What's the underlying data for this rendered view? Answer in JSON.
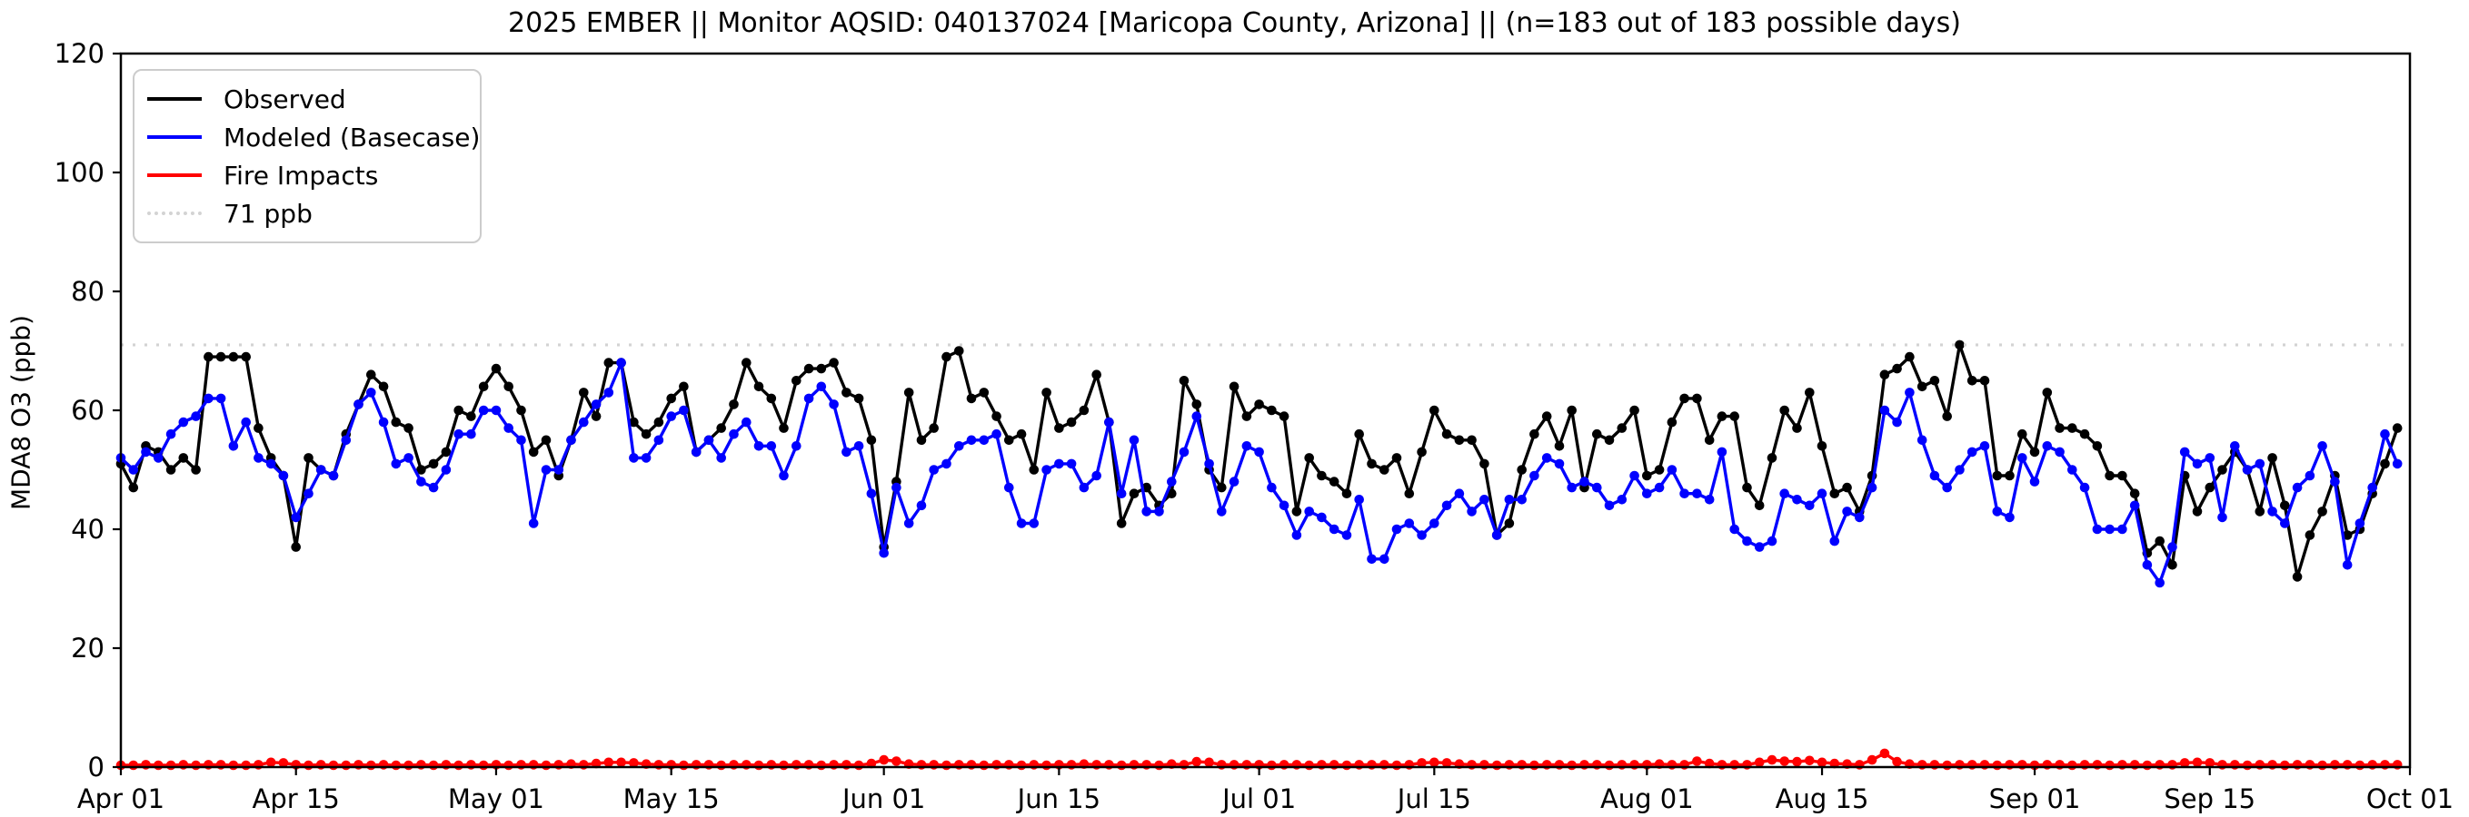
{
  "title": "2025 EMBER || Monitor AQSID: 040137024 [Maricopa County, Arizona] || (n=183 out of 183 possible days)",
  "legend": {
    "items": [
      {
        "label": "Observed",
        "color": "#000000",
        "style": "solid"
      },
      {
        "label": "Modeled (Basecase)",
        "color": "#0000ff",
        "style": "solid"
      },
      {
        "label": "Fire Impacts",
        "color": "#ff0000",
        "style": "solid"
      },
      {
        "label": "71 ppb",
        "color": "#d3d3d3",
        "style": "dotted"
      }
    ]
  },
  "colors": {
    "observed": "#000000",
    "modeled": "#0000ff",
    "fire": "#ff0000",
    "threshold": "#d3d3d3",
    "axes": "#000000",
    "background": "#ffffff"
  },
  "chart_data": {
    "type": "line",
    "title": "2025 EMBER || Monitor AQSID: 040137024 [Maricopa County, Arizona] || (n=183 out of 183 possible days)",
    "xlabel": "",
    "ylabel": "MDA8 O3 (ppb)",
    "ylim": [
      0,
      120
    ],
    "yticks": [
      0,
      20,
      40,
      60,
      80,
      100,
      120
    ],
    "x_range_days": 183,
    "start_date": "Apr 01",
    "end_date": "Sep 30",
    "grid": false,
    "legend_position": "upper left",
    "threshold": {
      "label": "71 ppb",
      "value": 71
    },
    "xticks": [
      {
        "label": "Apr 01",
        "day": 0
      },
      {
        "label": "Apr 15",
        "day": 14
      },
      {
        "label": "May 01",
        "day": 30
      },
      {
        "label": "May 15",
        "day": 44
      },
      {
        "label": "Jun 01",
        "day": 61
      },
      {
        "label": "Jun 15",
        "day": 75
      },
      {
        "label": "Jul 01",
        "day": 91
      },
      {
        "label": "Jul 15",
        "day": 105
      },
      {
        "label": "Aug 01",
        "day": 122
      },
      {
        "label": "Aug 15",
        "day": 136
      },
      {
        "label": "Sep 01",
        "day": 153
      },
      {
        "label": "Sep 15",
        "day": 167
      },
      {
        "label": "Oct 01",
        "day": 183
      }
    ],
    "series": [
      {
        "name": "Observed",
        "color": "#000000",
        "values": [
          51,
          47,
          54,
          53,
          50,
          52,
          50,
          69,
          69,
          69,
          69,
          57,
          52,
          49,
          37,
          52,
          50,
          49,
          56,
          61,
          66,
          64,
          58,
          57,
          50,
          51,
          53,
          60,
          59,
          64,
          67,
          64,
          60,
          53,
          55,
          49,
          55,
          63,
          59,
          68,
          68,
          58,
          56,
          58,
          62,
          64,
          53,
          55,
          57,
          61,
          68,
          64,
          62,
          57,
          65,
          67,
          67,
          68,
          63,
          62,
          55,
          37,
          48,
          63,
          55,
          57,
          69,
          70,
          62,
          63,
          59,
          55,
          56,
          50,
          63,
          57,
          58,
          60,
          66,
          58,
          41,
          46,
          47,
          44,
          46,
          65,
          61,
          50,
          47,
          64,
          59,
          61,
          60,
          59,
          43,
          52,
          49,
          48,
          46,
          56,
          51,
          50,
          52,
          46,
          53,
          60,
          56,
          55,
          55,
          51,
          39,
          41,
          50,
          56,
          59,
          54,
          60,
          47,
          56,
          55,
          57,
          60,
          49,
          50,
          58,
          62,
          62,
          55,
          59,
          59,
          47,
          44,
          52,
          60,
          57,
          63,
          54,
          46,
          47,
          43,
          49,
          66,
          67,
          69,
          64,
          65,
          59,
          71,
          65,
          65,
          49,
          49,
          56,
          53,
          63,
          57,
          57,
          56,
          54,
          49,
          49,
          46,
          36,
          38,
          34,
          49,
          43,
          47,
          50,
          53,
          50,
          43,
          52,
          44,
          32,
          39,
          43,
          49,
          39,
          40,
          46,
          51,
          57
        ]
      },
      {
        "name": "Modeled (Basecase)",
        "color": "#0000ff",
        "values": [
          52,
          50,
          53,
          52,
          56,
          58,
          59,
          62,
          62,
          54,
          58,
          52,
          51,
          49,
          42,
          46,
          50,
          49,
          55,
          61,
          63,
          58,
          51,
          52,
          48,
          47,
          50,
          56,
          56,
          60,
          60,
          57,
          55,
          41,
          50,
          50,
          55,
          58,
          61,
          63,
          68,
          52,
          52,
          55,
          59,
          60,
          53,
          55,
          52,
          56,
          58,
          54,
          54,
          49,
          54,
          62,
          64,
          61,
          53,
          54,
          46,
          36,
          47,
          41,
          44,
          50,
          51,
          54,
          55,
          55,
          56,
          47,
          41,
          41,
          50,
          51,
          51,
          47,
          49,
          58,
          46,
          55,
          43,
          43,
          48,
          53,
          59,
          51,
          43,
          48,
          54,
          53,
          47,
          44,
          39,
          43,
          42,
          40,
          39,
          45,
          35,
          35,
          40,
          41,
          39,
          41,
          44,
          46,
          43,
          45,
          39,
          45,
          45,
          49,
          52,
          51,
          47,
          48,
          47,
          44,
          45,
          49,
          46,
          47,
          50,
          46,
          46,
          45,
          53,
          40,
          38,
          37,
          38,
          46,
          45,
          44,
          46,
          38,
          43,
          42,
          47,
          60,
          58,
          63,
          55,
          49,
          47,
          50,
          53,
          54,
          43,
          42,
          52,
          48,
          54,
          53,
          50,
          47,
          40,
          40,
          40,
          44,
          34,
          31,
          37,
          53,
          51,
          52,
          42,
          54,
          50,
          51,
          43,
          41,
          47,
          49,
          54,
          48,
          34,
          41,
          47,
          56,
          51
        ]
      },
      {
        "name": "Fire Impacts",
        "color": "#ff0000",
        "values": [
          0.3,
          0.3,
          0.4,
          0.3,
          0.3,
          0.4,
          0.3,
          0.4,
          0.4,
          0.3,
          0.3,
          0.4,
          0.8,
          0.7,
          0.4,
          0.3,
          0.4,
          0.3,
          0.3,
          0.4,
          0.3,
          0.4,
          0.3,
          0.3,
          0.4,
          0.3,
          0.4,
          0.3,
          0.4,
          0.3,
          0.4,
          0.3,
          0.4,
          0.4,
          0.3,
          0.4,
          0.5,
          0.4,
          0.6,
          0.8,
          0.8,
          0.7,
          0.5,
          0.4,
          0.4,
          0.3,
          0.4,
          0.4,
          0.3,
          0.4,
          0.4,
          0.3,
          0.4,
          0.3,
          0.4,
          0.4,
          0.3,
          0.4,
          0.4,
          0.3,
          0.6,
          1.2,
          1.0,
          0.5,
          0.4,
          0.4,
          0.3,
          0.4,
          0.4,
          0.3,
          0.4,
          0.4,
          0.3,
          0.4,
          0.3,
          0.4,
          0.4,
          0.5,
          0.4,
          0.4,
          0.3,
          0.4,
          0.4,
          0.3,
          0.5,
          0.4,
          0.9,
          0.8,
          0.4,
          0.4,
          0.4,
          0.4,
          0.3,
          0.4,
          0.4,
          0.3,
          0.4,
          0.4,
          0.3,
          0.4,
          0.4,
          0.4,
          0.3,
          0.4,
          0.7,
          0.8,
          0.7,
          0.5,
          0.4,
          0.4,
          0.3,
          0.4,
          0.4,
          0.3,
          0.4,
          0.4,
          0.3,
          0.4,
          0.4,
          0.3,
          0.4,
          0.4,
          0.4,
          0.5,
          0.4,
          0.4,
          1.0,
          0.6,
          0.4,
          0.4,
          0.4,
          0.8,
          1.2,
          1.0,
          0.9,
          1.1,
          0.8,
          0.6,
          0.5,
          0.4,
          1.2,
          2.3,
          0.9,
          0.5,
          0.4,
          0.4,
          0.3,
          0.4,
          0.4,
          0.4,
          0.3,
          0.4,
          0.4,
          0.3,
          0.4,
          0.4,
          0.3,
          0.4,
          0.4,
          0.3,
          0.4,
          0.4,
          0.3,
          0.4,
          0.4,
          0.7,
          0.8,
          0.7,
          0.4,
          0.4,
          0.3,
          0.4,
          0.4,
          0.3,
          0.4,
          0.4,
          0.3,
          0.4,
          0.4,
          0.3,
          0.4,
          0.4,
          0.4
        ]
      }
    ]
  }
}
